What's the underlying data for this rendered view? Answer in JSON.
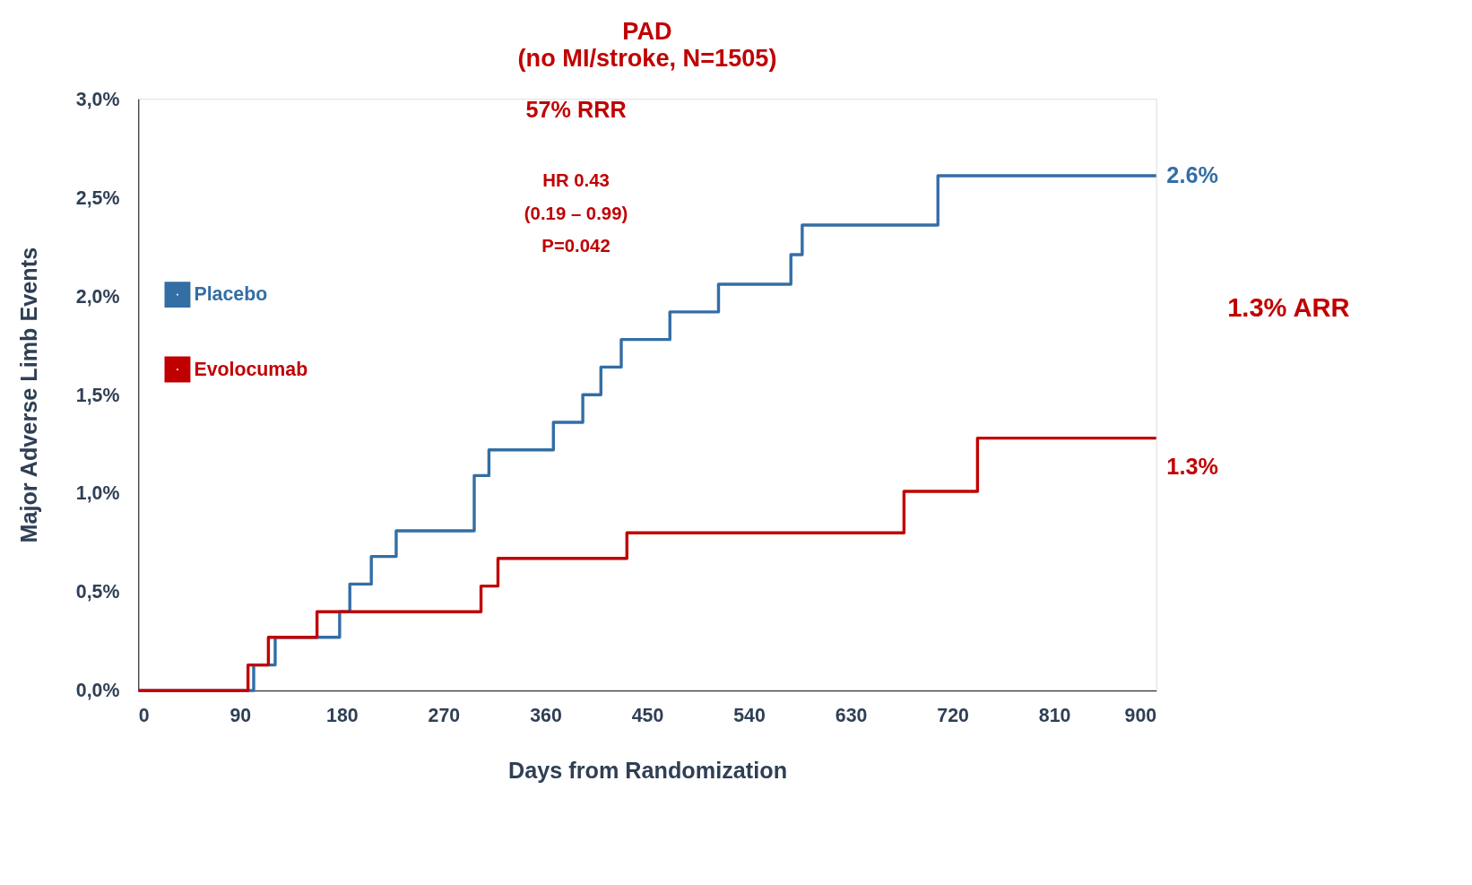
{
  "chart_data": {
    "type": "step",
    "title": "PAD",
    "subtitle": "(no MI/stroke, N=1505)",
    "xlabel": "Days from Randomization",
    "ylabel": "Major Adverse Limb Events",
    "series": [
      {
        "name": "Placebo",
        "color": "#336ea5",
        "x": [
          0,
          102,
          121,
          178,
          187,
          206,
          228,
          297,
          310,
          367,
          393,
          409,
          427,
          470,
          513,
          577,
          587,
          707,
          900
        ],
        "values": [
          0,
          0.13,
          0.27,
          0.4,
          0.54,
          0.68,
          0.81,
          1.09,
          1.22,
          1.36,
          1.5,
          1.64,
          1.78,
          1.92,
          2.06,
          2.21,
          2.36,
          2.61,
          2.61
        ]
      },
      {
        "name": "Evolocumab",
        "color": "#c00000",
        "x": [
          0,
          97,
          115,
          158,
          303,
          318,
          432,
          677,
          742,
          900
        ],
        "values": [
          0,
          0.13,
          0.27,
          0.4,
          0.53,
          0.67,
          0.8,
          1.01,
          1.28,
          1.28
        ]
      }
    ],
    "xlim": [
      0,
      900
    ],
    "xticks": [
      0,
      90,
      180,
      270,
      360,
      450,
      540,
      630,
      720,
      810,
      900
    ],
    "ylim": [
      0,
      3
    ],
    "yticks": [
      {
        "value": 0,
        "label": "0,0%"
      },
      {
        "value": 0.5,
        "label": "0,5%"
      },
      {
        "value": 1,
        "label": "1,0%"
      },
      {
        "value": 1.5,
        "label": "1,5%"
      },
      {
        "value": 2,
        "label": "2,0%"
      },
      {
        "value": 2.5,
        "label": "2,5%"
      },
      {
        "value": 3,
        "label": "3,0%"
      }
    ],
    "grid": false,
    "legend": "top left",
    "marker": "none",
    "line_style": "solid",
    "annotations": [
      "57% RRR",
      "HR 0.43",
      "(0.19 – 0.99)",
      "P=0.042",
      "1.3% ARR",
      {
        "text": "2.6%",
        "x": 900,
        "y": 2.61
      },
      {
        "text": "1.3%",
        "x": 900,
        "y": 1.28
      }
    ]
  }
}
